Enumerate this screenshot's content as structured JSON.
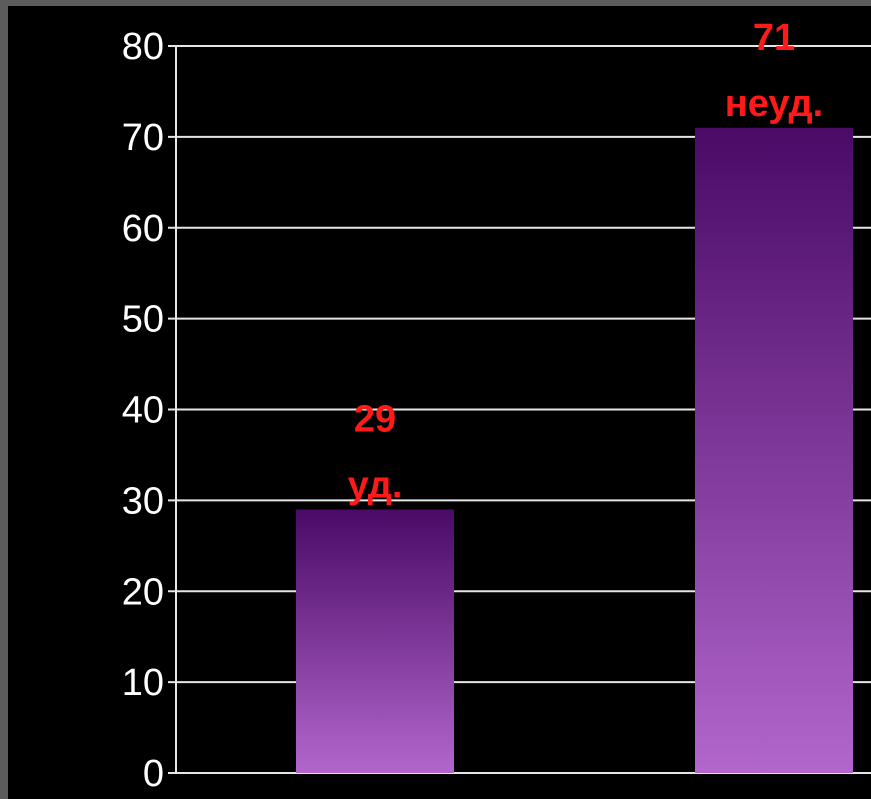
{
  "chart_data": {
    "type": "bar",
    "title": "",
    "xlabel": "",
    "ylabel": "",
    "categories": [
      "",
      ""
    ],
    "values": [
      29,
      71
    ],
    "data_labels": [
      {
        "value": "29",
        "text": "уд."
      },
      {
        "value": "71",
        "text": "неуд."
      }
    ],
    "ylim": [
      0,
      80
    ],
    "y_ticks": [
      0,
      10,
      20,
      30,
      40,
      50,
      60,
      70,
      80
    ],
    "grid": true,
    "legend": "none",
    "colors": {
      "background": "#000000",
      "bar_top": "#4a0a66",
      "bar_bottom": "#b266cc",
      "grid": "#e6e6e6",
      "label": "#ff1a1a",
      "tick": "#ffffff"
    }
  }
}
